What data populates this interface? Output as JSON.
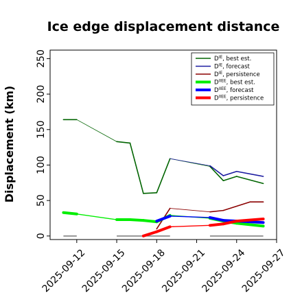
{
  "chart_data": {
    "type": "line",
    "title": "Ice edge displacement distance",
    "xlabel": "",
    "ylabel": "Displacement (km)",
    "xlim": [
      "2025-09-10",
      "2025-09-27"
    ],
    "ylim": [
      -5,
      262
    ],
    "yticks": [
      0,
      50,
      100,
      150,
      200,
      250
    ],
    "xticks": [
      {
        "label": "2025-09-12",
        "color": "#000000"
      },
      {
        "label": "2025-09-15",
        "color": "#000000"
      },
      {
        "label": "2025-09-18",
        "color": "#228b22"
      },
      {
        "label": "2025-09-21",
        "color": "#000000"
      },
      {
        "label": "2025-09-24",
        "color": "#000000"
      },
      {
        "label": "2025-09-27",
        "color": "#000000"
      }
    ],
    "legend_position": "top-right",
    "series": [
      {
        "name": "D^IE, best est.",
        "color": "#006400",
        "width": 1.6,
        "x": [
          "2025-09-11",
          "2025-09-12",
          "2025-09-15",
          "2025-09-16",
          "2025-09-17",
          "2025-09-18",
          "2025-09-19",
          "2025-09-22",
          "2025-09-23",
          "2025-09-24",
          "2025-09-26"
        ],
        "y": [
          164,
          164,
          133,
          131,
          60,
          61,
          109,
          98,
          78,
          84,
          74
        ]
      },
      {
        "name": "D^IE, forecast",
        "color": "#1a1aa0",
        "width": 1.6,
        "x": [
          "2025-09-19",
          "2025-09-22",
          "2025-09-23",
          "2025-09-24",
          "2025-09-26"
        ],
        "y": [
          109,
          99,
          85,
          91,
          84
        ]
      },
      {
        "name": "D^IE, persistence",
        "color": "#8b0000",
        "width": 1.6,
        "x": [
          "2025-09-18",
          "2025-09-19",
          "2025-09-22",
          "2025-09-23",
          "2025-09-25",
          "2025-09-26"
        ],
        "y": [
          10,
          39,
          34,
          36,
          48,
          48
        ]
      },
      {
        "name": "D^IIEE, best est.",
        "color": "#00ee00",
        "width": 4,
        "x": [
          "2025-09-11",
          "2025-09-12",
          "2025-09-15",
          "2025-09-16",
          "2025-09-17",
          "2025-09-18",
          "2025-09-19",
          "2025-09-22",
          "2025-09-23",
          "2025-09-24",
          "2025-09-26"
        ],
        "y": [
          33,
          31,
          23,
          23,
          22,
          20,
          29,
          25,
          21,
          18,
          14
        ]
      },
      {
        "name": "D^IIEE, forecast",
        "color": "#0000ff",
        "width": 4,
        "x": [
          "2025-09-18",
          "2025-09-19",
          "2025-09-22",
          "2025-09-23",
          "2025-09-24",
          "2025-09-26"
        ],
        "y": [
          21,
          28,
          26,
          22,
          21,
          19
        ]
      },
      {
        "name": "D^IIEE, persistence",
        "color": "#ff0000",
        "width": 4,
        "x": [
          "2025-09-17",
          "2025-09-18",
          "2025-09-19",
          "2025-09-22",
          "2025-09-23",
          "2025-09-24",
          "2025-09-26"
        ],
        "y": [
          0,
          6,
          13,
          15,
          17,
          21,
          24
        ]
      }
    ],
    "gray_segments": [
      {
        "x": [
          "2025-09-11",
          "2025-09-12"
        ],
        "y": 0
      },
      {
        "x": [
          "2025-09-15",
          "2025-09-19"
        ],
        "y": 0
      },
      {
        "x": [
          "2025-09-22",
          "2025-09-26"
        ],
        "y": 0
      }
    ]
  }
}
